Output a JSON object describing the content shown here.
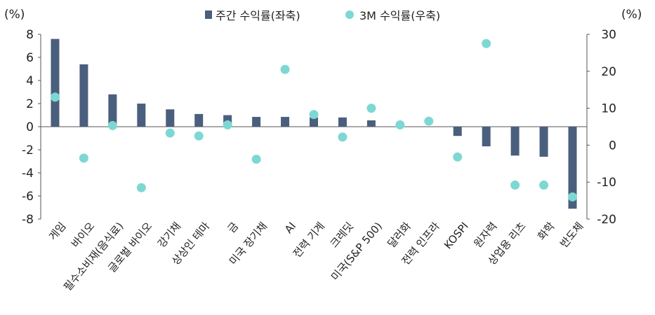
{
  "chart_data": {
    "type": "bar",
    "left_unit": "(%)",
    "right_unit": "(%)",
    "categories": [
      "게임",
      "바이오",
      "필수소비재(음식료)",
      "글로벌 바이오",
      "강기채",
      "상상인 테마",
      "금",
      "미국 장기채",
      "AI",
      "전력 기계",
      "크레딧",
      "미국(S&P 500)",
      "달러화",
      "전력 인프라",
      "KOSPI",
      "원자력",
      "상업용 리츠",
      "화학",
      "반도체"
    ],
    "series": [
      {
        "name": "주간 수익률(좌축)",
        "type": "bar",
        "axis": "left",
        "color": "#4a5f7d",
        "values": [
          7.6,
          5.4,
          2.8,
          2.0,
          1.5,
          1.1,
          1.0,
          0.85,
          0.85,
          0.8,
          0.8,
          0.55,
          0.0,
          0.0,
          -0.8,
          -1.7,
          -2.5,
          -2.6,
          -7.1
        ]
      },
      {
        "name": "3M 수익률(우축)",
        "type": "scatter",
        "axis": "right",
        "color": "#7dd8d4",
        "values": [
          13,
          -3.5,
          5.3,
          -11.5,
          3.3,
          2.5,
          5.5,
          -3.8,
          20.5,
          8.3,
          2.2,
          10,
          5.5,
          6.5,
          -3.2,
          27.5,
          -10.8,
          -10.8,
          -14
        ]
      }
    ],
    "ylim_left": [
      -8,
      8
    ],
    "yticks_left": [
      "8",
      "6",
      "4",
      "2",
      "0",
      "-2",
      "-4",
      "-6",
      "-8"
    ],
    "ylim_right": [
      -20,
      30
    ],
    "yticks_right": [
      "30",
      "20",
      "10",
      "0",
      "-10",
      "-20"
    ],
    "legend_position": "top-center",
    "grid": false
  }
}
